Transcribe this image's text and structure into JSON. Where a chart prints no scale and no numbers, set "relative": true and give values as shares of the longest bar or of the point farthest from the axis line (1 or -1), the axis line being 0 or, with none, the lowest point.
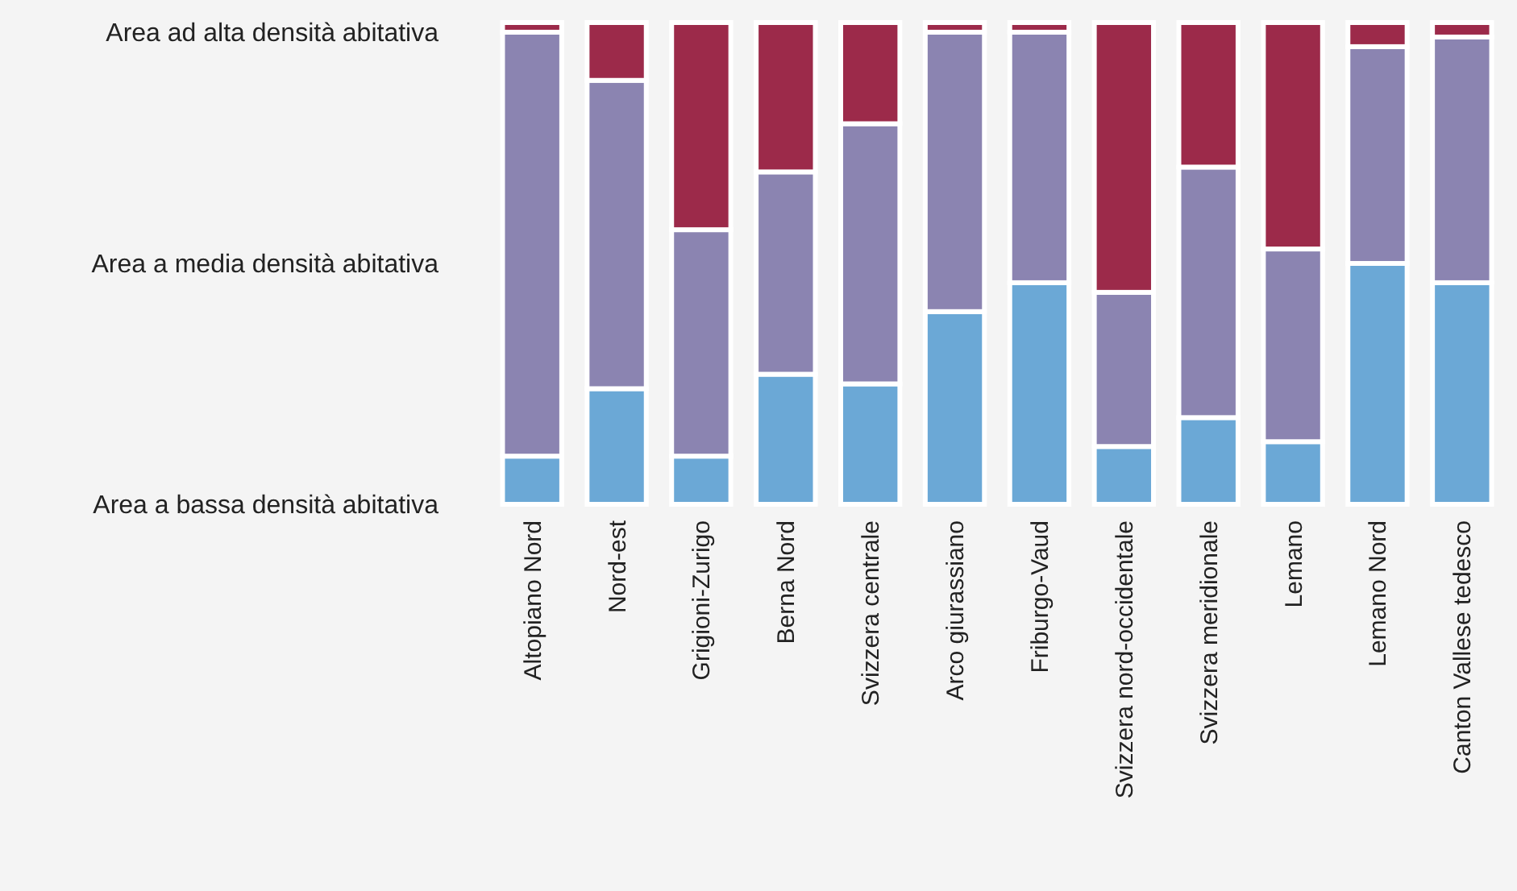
{
  "chart_data": {
    "type": "bar",
    "stacked": true,
    "relative": true,
    "legend": "left",
    "categories": [
      "Altopiano Nord",
      "Nord-est",
      "Grigioni-Zurigo",
      "Berna Nord",
      "Svizzera centrale",
      "Arco giurassiano",
      "Friburgo-Vaud",
      "Svizzera nord-occidentale",
      "Svizzera meridionale",
      "Lemano",
      "Lemano Nord",
      "Canton Vallese tedesco"
    ],
    "series": [
      {
        "name": "Area a bassa densità abitativa",
        "color": "#6ba8d6",
        "values": [
          0.1,
          0.24,
          0.1,
          0.27,
          0.25,
          0.4,
          0.46,
          0.12,
          0.18,
          0.13,
          0.5,
          0.46
        ]
      },
      {
        "name": "Area a media densità abitativa",
        "color": "#8b84b1",
        "values": [
          0.88,
          0.64,
          0.47,
          0.42,
          0.54,
          0.58,
          0.52,
          0.32,
          0.52,
          0.4,
          0.45,
          0.51
        ]
      },
      {
        "name": "Area ad alta densità abitativa",
        "color": "#9c2a4a",
        "values": [
          0.02,
          0.12,
          0.43,
          0.31,
          0.21,
          0.02,
          0.02,
          0.56,
          0.3,
          0.47,
          0.05,
          0.03
        ]
      }
    ]
  }
}
